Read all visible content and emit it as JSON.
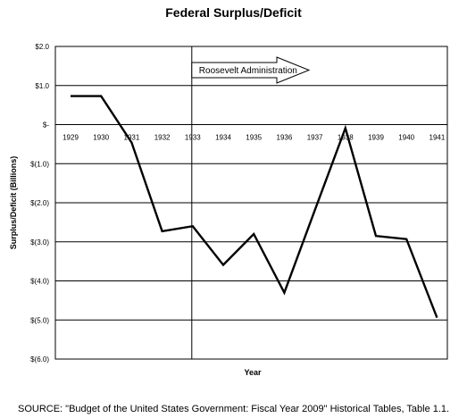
{
  "chart_data": {
    "type": "line",
    "title": "Federal Surplus/Deficit",
    "xlabel": "Year",
    "ylabel": "Surplus/Deficit (Billions)",
    "ylim": [
      -6,
      2
    ],
    "grid": "horizontal",
    "x": [
      "1929",
      "1930",
      "1931",
      "1932",
      "1933",
      "1934",
      "1935",
      "1936",
      "1937",
      "1938",
      "1939",
      "1940",
      "1941"
    ],
    "y_ticks": [
      {
        "value": 2,
        "label": "$2.0"
      },
      {
        "value": 1,
        "label": "$1.0"
      },
      {
        "value": 0,
        "label": "$-"
      },
      {
        "value": -1,
        "label": "$(1.0)"
      },
      {
        "value": -2,
        "label": "$(2.0)"
      },
      {
        "value": -3,
        "label": "$(3.0)"
      },
      {
        "value": -4,
        "label": "$(4.0)"
      },
      {
        "value": -5,
        "label": "$(5.0)"
      },
      {
        "value": -6,
        "label": "$(6.0)"
      }
    ],
    "series": [
      {
        "values": [
          0.73,
          0.73,
          -0.46,
          -2.73,
          -2.6,
          -3.59,
          -2.8,
          -4.3,
          -2.19,
          -0.09,
          -2.85,
          -2.93,
          -4.94
        ]
      }
    ],
    "annotations": [
      {
        "type": "vertical-line",
        "at": "1933"
      },
      {
        "type": "arrow",
        "text": "Roosevelt Administration",
        "from": "1933"
      }
    ]
  },
  "source": "SOURCE: \"Budget of the United States Government: Fiscal Year 2009\" Historical Tables, Table 1.1."
}
